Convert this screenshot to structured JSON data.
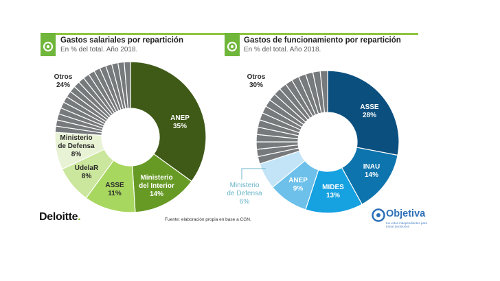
{
  "header": {
    "left": {
      "title": "Gastos salariales por repartición",
      "subtitle": "En % del total. Año 2018."
    },
    "right": {
      "title": "Gastos de funcionamiento por repartición",
      "subtitle": "En % del total. Año 2018."
    }
  },
  "footer": {
    "brand": "Deloitte",
    "brand_dot": ".",
    "source": "Fuente: elaboración propia en base a CGN.",
    "partner_logo": "Objetiva",
    "partner_tagline": "tus votos independientes para tomar decisiones"
  },
  "colors": {
    "accent_green": "#8dc63f",
    "badge_green": "#6fb63a",
    "partner_blue": "#2b6fb8"
  },
  "icons": [
    "logo-badge-icon",
    "logo-badge-icon",
    "objetiva-logo-icon"
  ],
  "chart_data": [
    {
      "type": "pie",
      "variant": "donut",
      "title": "Gastos salariales por repartición",
      "subtitle": "En % del total. Año 2018.",
      "unit": "%",
      "slices": [
        {
          "label": "ANEP",
          "value": 35,
          "color": "#3f5a17"
        },
        {
          "label": "Ministerio del Interior",
          "value": 14,
          "color": "#679a25"
        },
        {
          "label": "ASSE",
          "value": 11,
          "color": "#a8d760"
        },
        {
          "label": "UdelaR",
          "value": 8,
          "color": "#cbe69d"
        },
        {
          "label": "Ministerio de Defensa",
          "value": 8,
          "color": "#e8f2d4"
        },
        {
          "label": "Otros",
          "value": 24,
          "color": "#777a7c",
          "segments": 18
        }
      ],
      "labels": [
        {
          "lines": [
            "ANEP",
            "35%"
          ]
        },
        {
          "lines": [
            "Ministerio",
            "del Interior",
            "14%"
          ]
        },
        {
          "lines": [
            "ASSE",
            "11%"
          ]
        },
        {
          "lines": [
            "UdelaR",
            "8%"
          ]
        },
        {
          "lines": [
            "Ministerio",
            "de Defensa",
            "8%"
          ]
        },
        {
          "lines": [
            "Otros",
            "24%"
          ]
        }
      ]
    },
    {
      "type": "pie",
      "variant": "donut",
      "title": "Gastos de funcionamiento por repartición",
      "subtitle": "En % del total. Año 2018.",
      "unit": "%",
      "slices": [
        {
          "label": "ASSE",
          "value": 28,
          "color": "#0b4f7f"
        },
        {
          "label": "INAU",
          "value": 14,
          "color": "#0d74ad"
        },
        {
          "label": "MIDES",
          "value": 13,
          "color": "#16a1e0"
        },
        {
          "label": "ANEP",
          "value": 9,
          "color": "#6cc0ea"
        },
        {
          "label": "Ministerio de Defensa",
          "value": 6,
          "color": "#c3e4f6"
        },
        {
          "label": "Otros",
          "value": 30,
          "color": "#777a7c",
          "segments": 18
        }
      ],
      "labels": [
        {
          "lines": [
            "ASSE",
            "28%"
          ]
        },
        {
          "lines": [
            "INAU",
            "14%"
          ]
        },
        {
          "lines": [
            "MIDES",
            "13%"
          ]
        },
        {
          "lines": [
            "ANEP",
            "9%"
          ]
        },
        {
          "lines": [
            "Ministerio",
            "de Defensa",
            "6%"
          ]
        },
        {
          "lines": [
            "Otros",
            "30%"
          ]
        }
      ]
    }
  ]
}
